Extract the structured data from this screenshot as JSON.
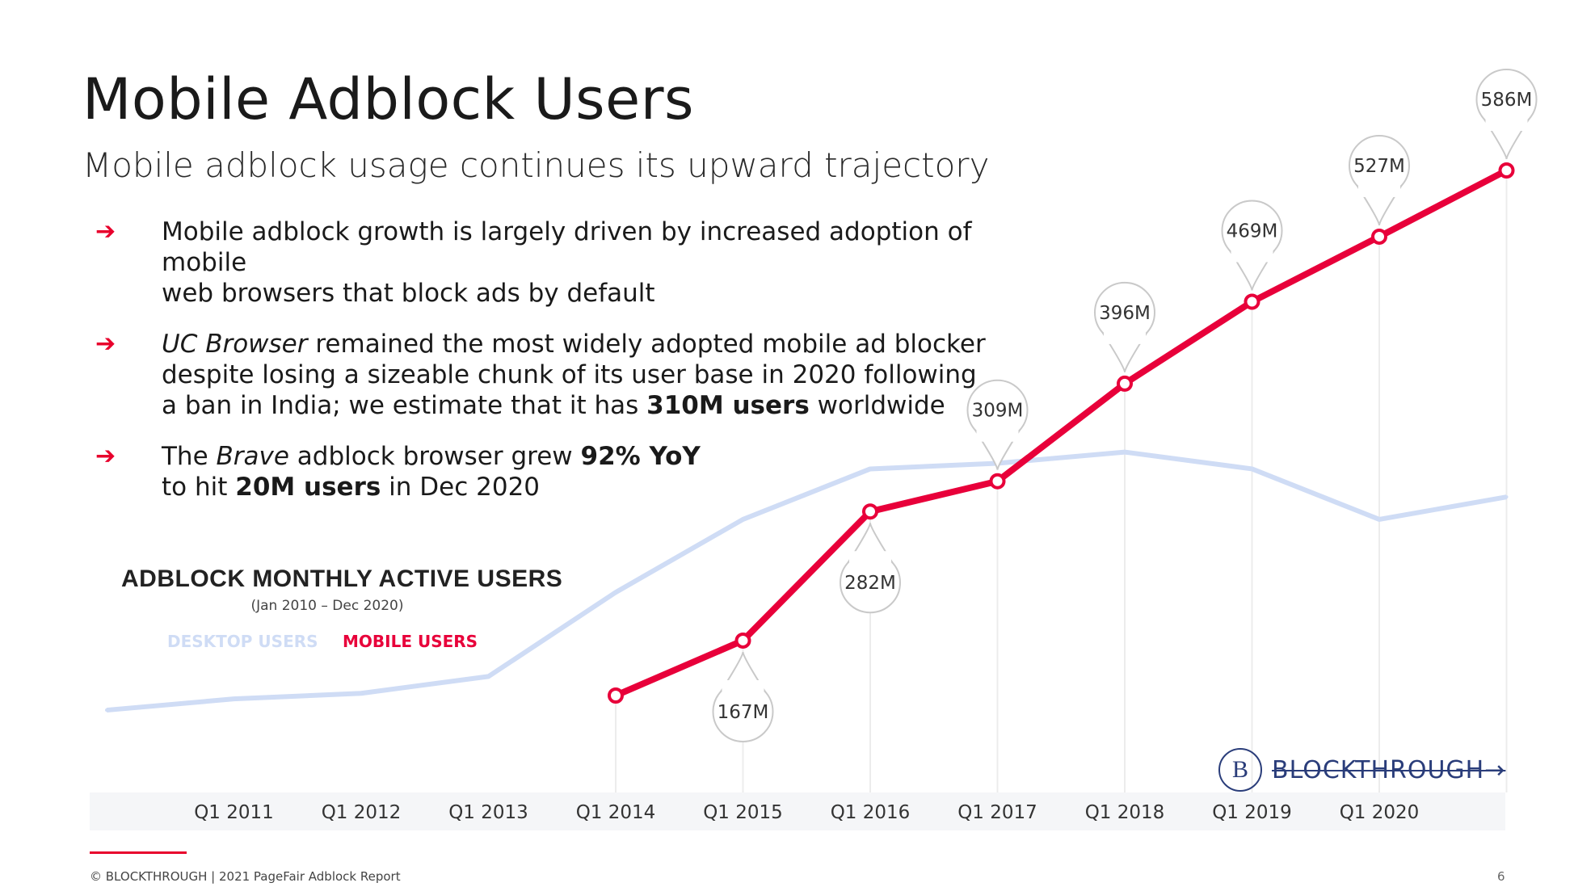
{
  "header": {
    "title": "Mobile Adblock Users",
    "subtitle": "Mobile adblock usage continues its upward trajectory"
  },
  "bullets": [
    {
      "arrow": "➔",
      "line1": "Mobile adblock growth is largely driven by increased adoption of mobile",
      "line2": "web browsers that block ads by default"
    },
    {
      "arrow": "➔",
      "em": "UC Browser",
      "line1_rest": " remained the most widely adopted mobile ad blocker",
      "line2": "despite losing a sizeable chunk of its user base in 2020 following",
      "line3_pre": "a ban in India; we estimate that it has ",
      "line3_bold": "310M users",
      "line3_post": " worldwide"
    },
    {
      "arrow": "➔",
      "pre": "The ",
      "em": "Brave",
      "mid": " adblock browser grew ",
      "bold1": "92% YoY",
      "line2_pre": "to hit ",
      "bold2": "20M users",
      "line2_post": " in Dec 2020"
    }
  ],
  "chart_heading": {
    "title": "ADBLOCK MONTHLY ACTIVE USERS",
    "range": "(Jan 2010 – Dec 2020)",
    "legend_desktop": "DESKTOP USERS",
    "legend_mobile": "MOBILE USERS"
  },
  "chart_data": {
    "type": "line",
    "title": "ADBLOCK MONTHLY ACTIVE USERS",
    "subtitle": "(Jan 2010 – Dec 2020)",
    "x_labels": [
      "Q1 2011",
      "Q1 2012",
      "Q1 2013",
      "Q1 2014",
      "Q1 2015",
      "Q1 2016",
      "Q1 2017",
      "Q1 2018",
      "Q1 2019",
      "Q1 2020"
    ],
    "y_range_millions": [
      100,
      650
    ],
    "series": [
      {
        "name": "DESKTOP USERS",
        "color": "#cfdcf5",
        "x": [
          2010.0,
          2011.0,
          2012.0,
          2013.0,
          2014.0,
          2015.0,
          2016.0,
          2017.0,
          2018.0,
          2019.0,
          2020.0,
          2021.0
        ],
        "values": [
          105,
          115,
          120,
          135,
          210,
          275,
          320,
          325,
          335,
          320,
          275,
          295
        ]
      },
      {
        "name": "MOBILE USERS",
        "color": "#e8003a",
        "x": [
          2014.0,
          2015.0,
          2016.0,
          2017.0,
          2018.0,
          2019.0,
          2020.0,
          2021.0
        ],
        "values": [
          118,
          167,
          282,
          309,
          396,
          469,
          527,
          586
        ],
        "data_labels": [
          "",
          "167M",
          "282M",
          "309M",
          "396M",
          "469M",
          "527M",
          "586M"
        ]
      }
    ],
    "grid": false,
    "legend_position": "top-left"
  },
  "brand": {
    "mark": "B",
    "name": "BLOCKTHROUGH→"
  },
  "footer": {
    "text": "© BLOCKTHROUGH | 2021 PageFair Adblock Report",
    "page": "6"
  }
}
